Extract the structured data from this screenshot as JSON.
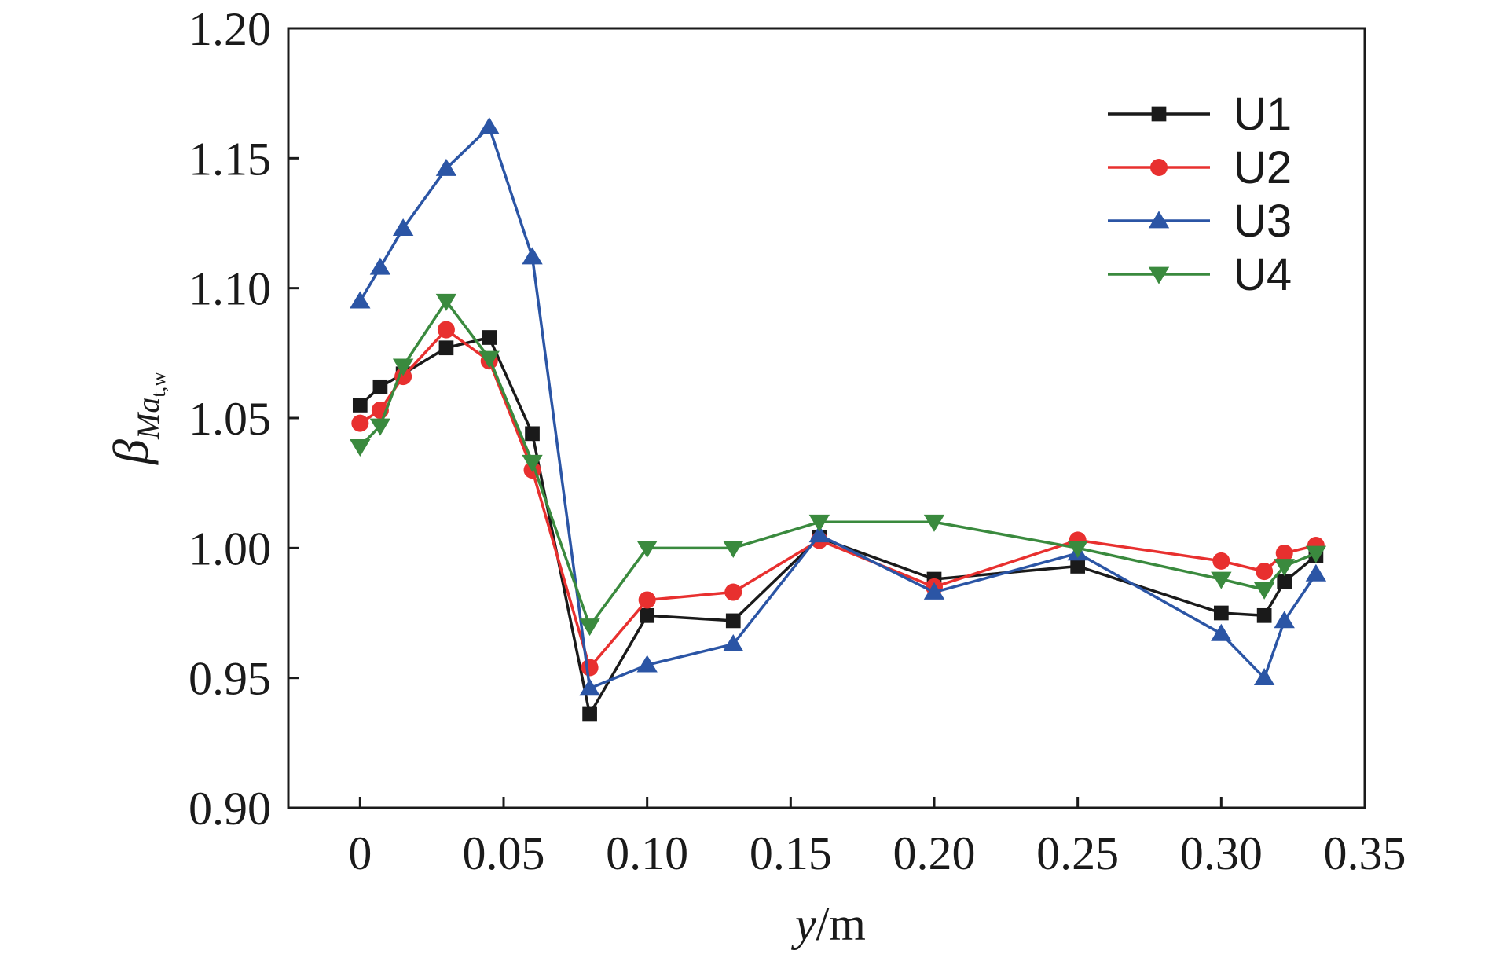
{
  "chart_data": {
    "type": "line",
    "x_axis": {
      "label_var": "y",
      "label_unit": "/m",
      "range": [
        -0.025,
        0.35
      ],
      "ticks": [
        0,
        0.05,
        0.1,
        0.15,
        0.2,
        0.25,
        0.3,
        0.35
      ],
      "tick_labels": [
        "0",
        "0.05",
        "0.10",
        "0.15",
        "0.20",
        "0.25",
        "0.30",
        "0.35"
      ]
    },
    "y_axis": {
      "label_symbol": "β",
      "label_sub": "Ma",
      "label_subsub": "t,w",
      "range": [
        0.9,
        1.2
      ],
      "ticks": [
        0.9,
        0.95,
        1.0,
        1.05,
        1.1,
        1.15,
        1.2
      ],
      "tick_labels": [
        "0.90",
        "0.95",
        "1.00",
        "1.05",
        "1.10",
        "1.15",
        "1.20"
      ]
    },
    "grid": false,
    "legend_position": "top-right",
    "series": [
      {
        "name": "U1",
        "color": "#1a1a1a",
        "marker": "square",
        "points": [
          [
            0,
            1.055
          ],
          [
            0.007,
            1.062
          ],
          [
            0.015,
            1.067
          ],
          [
            0.03,
            1.077
          ],
          [
            0.045,
            1.081
          ],
          [
            0.06,
            1.044
          ],
          [
            0.08,
            0.936
          ],
          [
            0.1,
            0.974
          ],
          [
            0.13,
            0.972
          ],
          [
            0.16,
            1.004
          ],
          [
            0.2,
            0.988
          ],
          [
            0.25,
            0.993
          ],
          [
            0.3,
            0.975
          ],
          [
            0.315,
            0.974
          ],
          [
            0.322,
            0.987
          ],
          [
            0.333,
            0.997
          ]
        ]
      },
      {
        "name": "U2",
        "color": "#e8302f",
        "marker": "circle",
        "points": [
          [
            0,
            1.048
          ],
          [
            0.007,
            1.053
          ],
          [
            0.015,
            1.066
          ],
          [
            0.03,
            1.084
          ],
          [
            0.045,
            1.072
          ],
          [
            0.06,
            1.03
          ],
          [
            0.08,
            0.954
          ],
          [
            0.1,
            0.98
          ],
          [
            0.13,
            0.983
          ],
          [
            0.16,
            1.003
          ],
          [
            0.2,
            0.985
          ],
          [
            0.25,
            1.003
          ],
          [
            0.3,
            0.995
          ],
          [
            0.315,
            0.991
          ],
          [
            0.322,
            0.998
          ],
          [
            0.333,
            1.001
          ]
        ]
      },
      {
        "name": "U3",
        "color": "#2b55a5",
        "marker": "triangle-up",
        "points": [
          [
            0,
            1.095
          ],
          [
            0.007,
            1.108
          ],
          [
            0.015,
            1.123
          ],
          [
            0.03,
            1.146
          ],
          [
            0.045,
            1.162
          ],
          [
            0.06,
            1.112
          ],
          [
            0.08,
            0.946
          ],
          [
            0.1,
            0.955
          ],
          [
            0.13,
            0.963
          ],
          [
            0.16,
            1.005
          ],
          [
            0.2,
            0.983
          ],
          [
            0.25,
            0.998
          ],
          [
            0.3,
            0.967
          ],
          [
            0.315,
            0.95
          ],
          [
            0.322,
            0.972
          ],
          [
            0.333,
            0.99
          ]
        ]
      },
      {
        "name": "U4",
        "color": "#3a8a3e",
        "marker": "triangle-down",
        "points": [
          [
            0,
            1.039
          ],
          [
            0.007,
            1.047
          ],
          [
            0.015,
            1.07
          ],
          [
            0.03,
            1.095
          ],
          [
            0.045,
            1.073
          ],
          [
            0.06,
            1.033
          ],
          [
            0.08,
            0.97
          ],
          [
            0.1,
            1.0
          ],
          [
            0.13,
            1.0
          ],
          [
            0.16,
            1.01
          ],
          [
            0.2,
            1.01
          ],
          [
            0.25,
            1.0
          ],
          [
            0.3,
            0.988
          ],
          [
            0.315,
            0.984
          ],
          [
            0.322,
            0.993
          ],
          [
            0.333,
            0.998
          ]
        ]
      }
    ]
  }
}
